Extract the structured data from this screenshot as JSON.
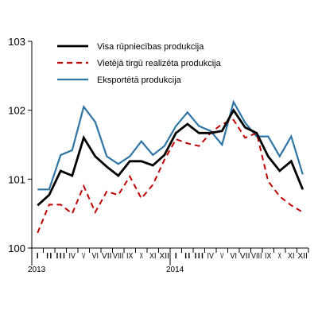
{
  "chart_data": {
    "type": "line",
    "title": "",
    "xlabel": "",
    "ylabel": "",
    "ylim": [
      100,
      103
    ],
    "yticks": [
      100,
      101,
      102,
      103
    ],
    "grid": false,
    "legend_position": "top",
    "year_labels": [
      {
        "label": "2013",
        "index": 0
      },
      {
        "label": "2014",
        "index": 12
      }
    ],
    "categories": [
      "I",
      "II",
      "III",
      "IV",
      "V",
      "VI",
      "VII",
      "VIII",
      "IX",
      "X",
      "XI",
      "XII",
      "I",
      "II",
      "III",
      "IV",
      "V",
      "VI",
      "VII",
      "VIII",
      "IX",
      "X",
      "XI",
      "XII"
    ],
    "series": [
      {
        "name": "Visa rūpniecības produkcija",
        "color": "#000000",
        "style": "solid",
        "values": [
          100.62,
          100.77,
          101.12,
          101.05,
          101.6,
          101.33,
          101.18,
          101.05,
          101.26,
          101.26,
          101.2,
          101.35,
          101.67,
          101.8,
          101.67,
          101.67,
          101.7,
          102.0,
          101.75,
          101.67,
          101.33,
          101.12,
          101.26,
          100.85
        ]
      },
      {
        "name": "Vietējā tirgū realizēta produkcija",
        "color": "#c00000",
        "style": "dashed",
        "values": [
          100.22,
          100.63,
          100.63,
          100.5,
          100.9,
          100.52,
          100.82,
          100.77,
          101.04,
          100.72,
          100.92,
          101.28,
          101.58,
          101.52,
          101.48,
          101.67,
          101.8,
          101.86,
          101.6,
          101.67,
          100.97,
          100.75,
          100.62,
          100.52
        ]
      },
      {
        "name": "Eksportētā produkcija",
        "color": "#2e75a6",
        "style": "solid",
        "values": [
          100.85,
          100.85,
          101.35,
          101.42,
          102.05,
          101.83,
          101.33,
          101.22,
          101.33,
          101.55,
          101.35,
          101.48,
          101.77,
          101.97,
          101.77,
          101.7,
          101.5,
          102.12,
          101.82,
          101.62,
          101.62,
          101.33,
          101.62,
          101.07
        ]
      }
    ]
  }
}
